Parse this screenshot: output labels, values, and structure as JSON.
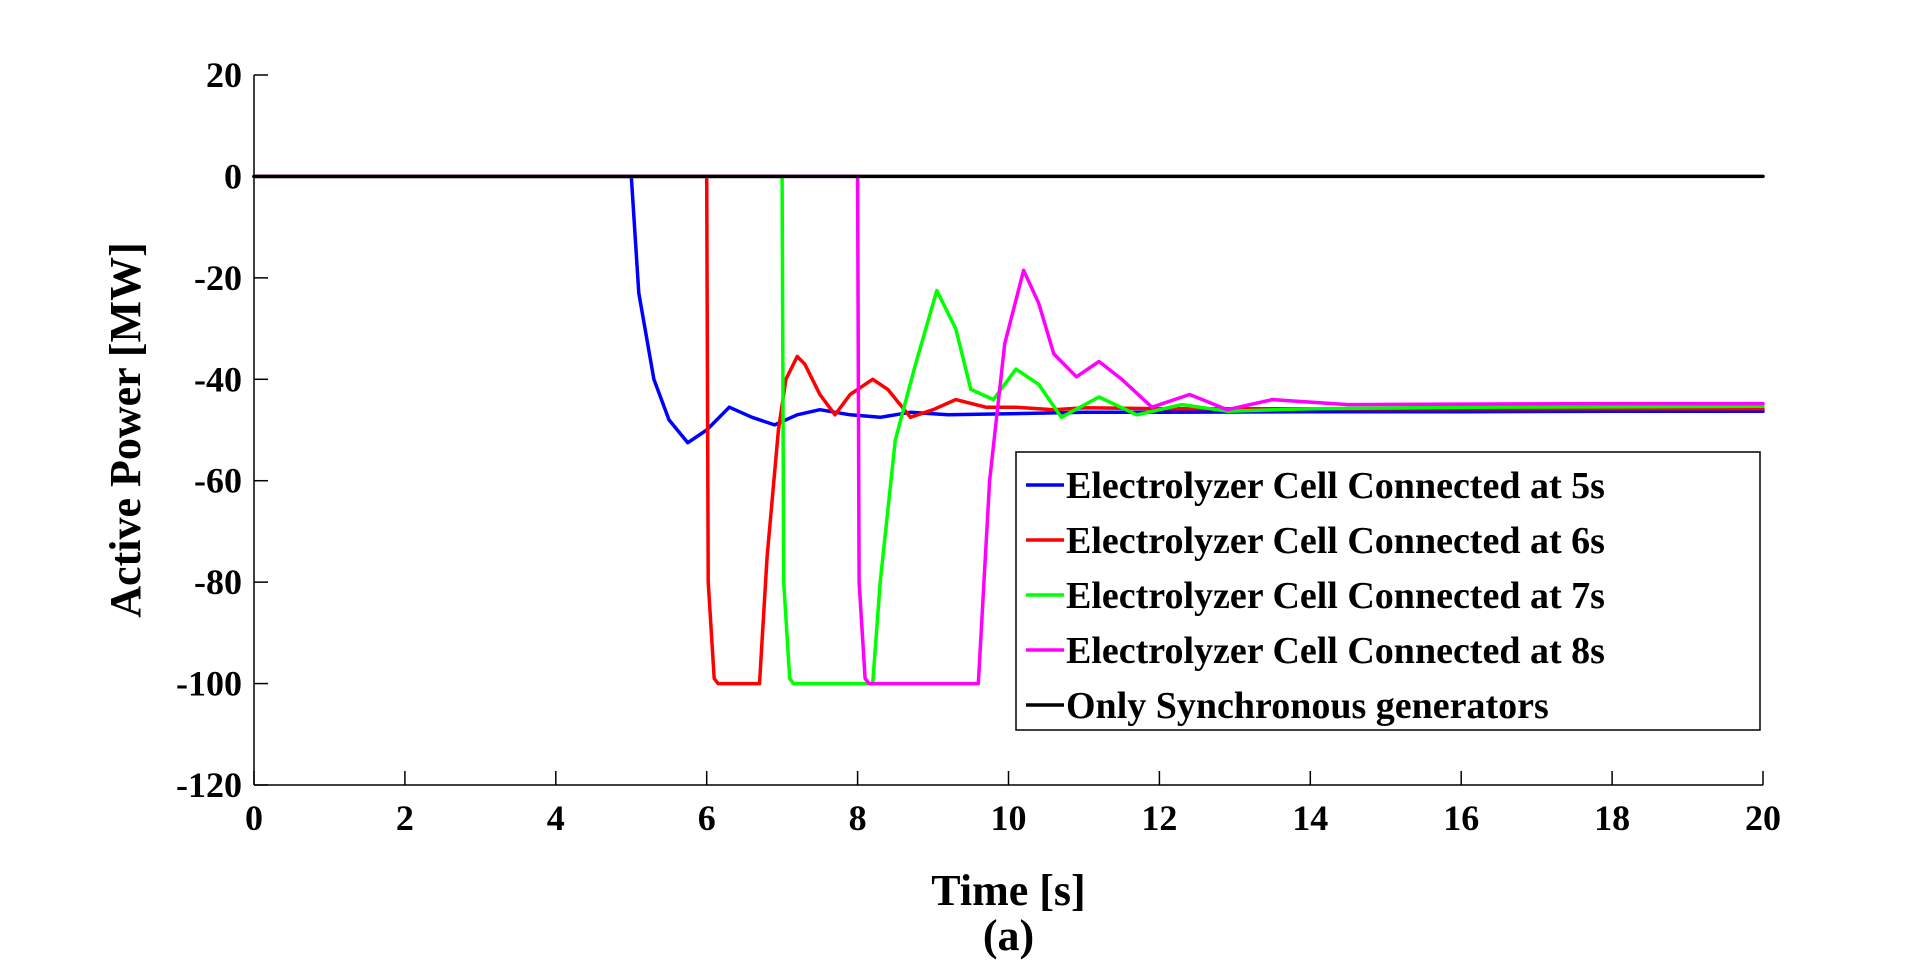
{
  "chart_data": {
    "type": "line",
    "title": "",
    "xlabel": "Time [s]",
    "ylabel": "Active Power [MW]",
    "caption": "(a)",
    "xlim": [
      0,
      20
    ],
    "ylim": [
      -120,
      20
    ],
    "xticks": [
      0,
      2,
      4,
      6,
      8,
      10,
      12,
      14,
      16,
      18,
      20
    ],
    "yticks": [
      20,
      0,
      -20,
      -40,
      -60,
      -80,
      -100,
      -120
    ],
    "grid": false,
    "legend_position": "lower-right",
    "series": [
      {
        "name": "Electrolyzer Cell Connected at 5s",
        "color": "#0000ff",
        "x": [
          0,
          5,
          5.1,
          5.3,
          5.5,
          5.75,
          6.0,
          6.3,
          6.6,
          6.9,
          7.2,
          7.5,
          7.9,
          8.3,
          8.7,
          9.2,
          10,
          11,
          12,
          14,
          16,
          18,
          20
        ],
        "y": [
          0,
          0,
          -23,
          -40,
          -48,
          -52.5,
          -50,
          -45.5,
          -47.5,
          -49,
          -47,
          -46,
          -47,
          -47.5,
          -46.5,
          -47,
          -46.8,
          -46.5,
          -46.5,
          -46.4,
          -46.4,
          -46.3,
          -46.3
        ]
      },
      {
        "name": "Electrolyzer Cell Connected at 6s",
        "color": "#ff0000",
        "x": [
          0,
          6,
          6.02,
          6.1,
          6.15,
          6.4,
          6.7,
          6.8,
          6.95,
          7.05,
          7.2,
          7.3,
          7.5,
          7.7,
          7.9,
          8.2,
          8.4,
          8.7,
          9.0,
          9.3,
          9.7,
          10.1,
          10.6,
          11.0,
          12,
          14,
          16,
          18,
          20
        ],
        "y": [
          0,
          0,
          -80,
          -99,
          -100,
          -100,
          -100,
          -75,
          -50,
          -40,
          -35.5,
          -37,
          -43,
          -47,
          -43,
          -40,
          -42,
          -47.5,
          -46,
          -44,
          -45.5,
          -45.5,
          -46,
          -45.6,
          -45.8,
          -45.8,
          -45.8,
          -45.8,
          -45.8
        ]
      },
      {
        "name": "Electrolyzer Cell Connected at 7s",
        "color": "#00ff00",
        "x": [
          0,
          7,
          7.02,
          7.1,
          7.15,
          7.5,
          8.2,
          8.3,
          8.5,
          8.75,
          9.05,
          9.3,
          9.5,
          9.8,
          10.1,
          10.4,
          10.7,
          11.2,
          11.7,
          12.3,
          12.9,
          14,
          16,
          18,
          20
        ],
        "y": [
          0,
          0,
          -80,
          -99,
          -100,
          -100,
          -100,
          -80,
          -52,
          -38,
          -22.5,
          -30,
          -42,
          -44,
          -38,
          -41,
          -47.5,
          -43.5,
          -47,
          -45,
          -46.3,
          -45.8,
          -45.5,
          -45.4,
          -45.3
        ]
      },
      {
        "name": "Electrolyzer Cell Connected at 8s",
        "color": "#ff00ff",
        "x": [
          0,
          8,
          8.02,
          8.1,
          8.15,
          8.6,
          9.2,
          9.6,
          9.75,
          9.95,
          10.2,
          10.4,
          10.6,
          10.9,
          11.2,
          11.5,
          11.9,
          12.4,
          12.9,
          13.5,
          14.5,
          16,
          18,
          20
        ],
        "y": [
          0,
          0,
          -80,
          -99,
          -100,
          -100,
          -100,
          -100,
          -60,
          -33,
          -18.5,
          -25,
          -35,
          -39.5,
          -36.5,
          -40,
          -45.5,
          -43,
          -46,
          -44,
          -45,
          -44.9,
          -44.8,
          -44.8
        ]
      },
      {
        "name": "Only Synchronous generators",
        "color": "#000000",
        "x": [
          0,
          20
        ],
        "y": [
          0,
          0
        ]
      }
    ]
  }
}
